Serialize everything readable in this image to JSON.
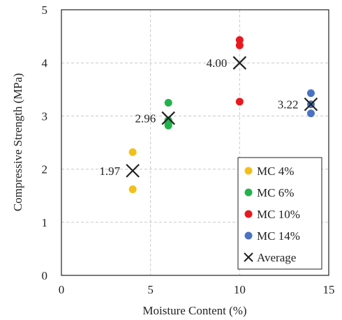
{
  "chart_data": {
    "type": "scatter",
    "title": "",
    "xlabel": "Moisture Content (%)",
    "ylabel": "Compressive Strength (MPa)",
    "xlim": [
      0,
      15
    ],
    "ylim": [
      0,
      5
    ],
    "xticks": [
      0,
      5,
      10,
      15
    ],
    "yticks": [
      0,
      1,
      2,
      3,
      4,
      5
    ],
    "grid": true,
    "legend_position": "bottom-right",
    "series": [
      {
        "name": "MC 4%",
        "color": "#f2c019",
        "marker": "circle",
        "x": [
          4,
          4
        ],
        "y": [
          2.32,
          1.62
        ]
      },
      {
        "name": "MC 6%",
        "color": "#22b24c",
        "marker": "circle",
        "x": [
          6,
          6,
          6,
          6
        ],
        "y": [
          3.25,
          2.92,
          2.85,
          2.82
        ]
      },
      {
        "name": "MC 10%",
        "color": "#e8191e",
        "marker": "circle",
        "x": [
          10,
          10,
          10
        ],
        "y": [
          4.43,
          4.33,
          3.27
        ]
      },
      {
        "name": "MC 14%",
        "color": "#4a72c4",
        "marker": "circle",
        "x": [
          14,
          14,
          14
        ],
        "y": [
          3.43,
          3.22,
          3.05
        ]
      },
      {
        "name": "Average",
        "color": "#222222",
        "marker": "x",
        "x": [
          4,
          6,
          10,
          14
        ],
        "y": [
          1.97,
          2.96,
          4.0,
          3.22
        ]
      }
    ],
    "annotations": [
      {
        "text": "1.97",
        "x": 4,
        "y": 1.97
      },
      {
        "text": "2.96",
        "x": 6,
        "y": 2.96
      },
      {
        "text": "4.00",
        "x": 10,
        "y": 4.0
      },
      {
        "text": "3.22",
        "x": 14,
        "y": 3.22
      }
    ]
  }
}
